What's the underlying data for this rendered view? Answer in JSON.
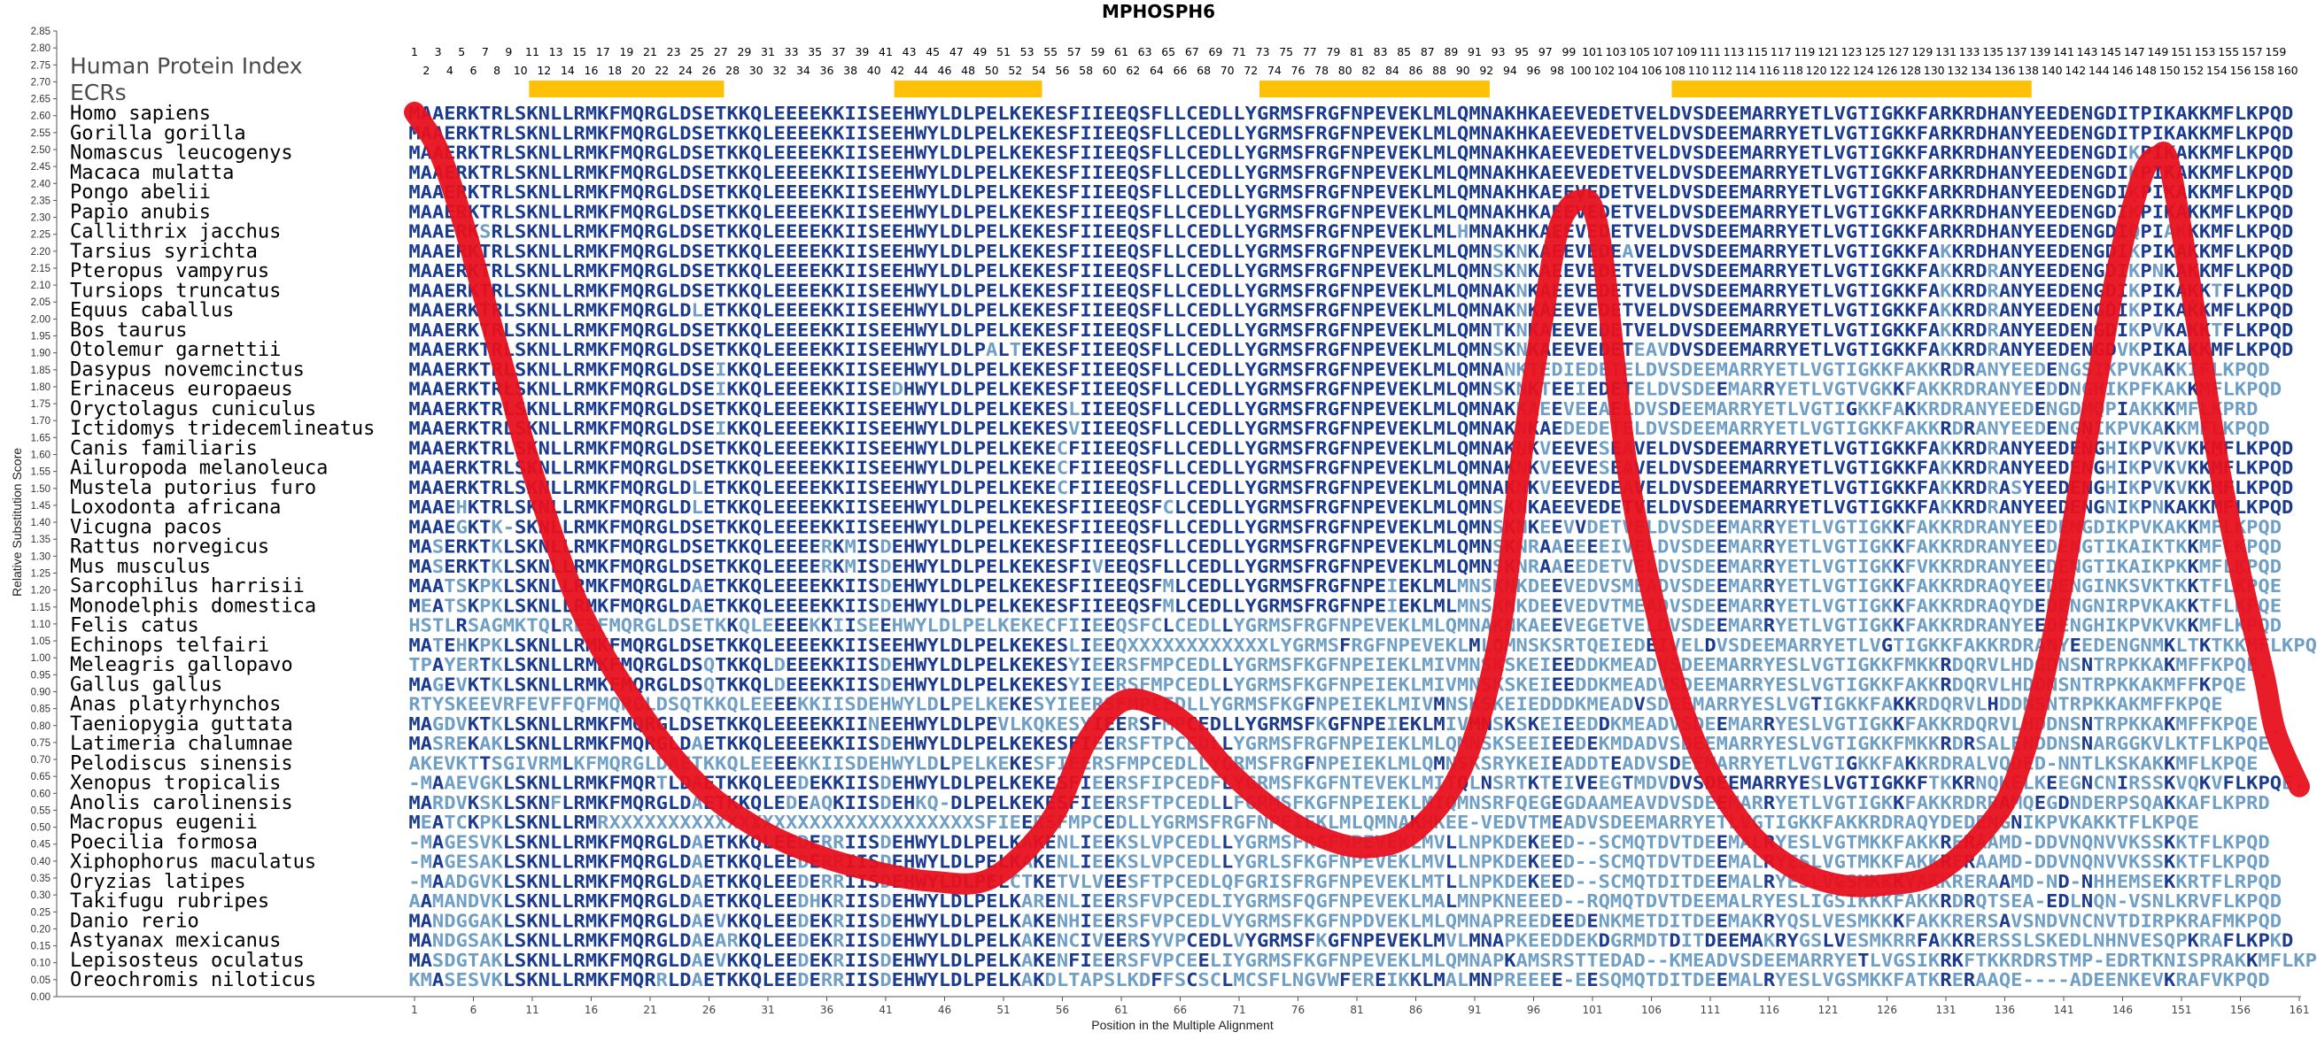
{
  "chart_data": {
    "type": "line",
    "title": "MPHOSPH6",
    "xlabel": "Position in the Multiple Alignment",
    "ylabel": "Relative Substitution Score",
    "ylim": [
      0,
      2.85
    ],
    "xlim": [
      1,
      161
    ],
    "y_ticks": [
      "0.00",
      "0.05",
      "0.10",
      "0.15",
      "0.20",
      "0.25",
      "0.30",
      "0.35",
      "0.40",
      "0.45",
      "0.50",
      "0.55",
      "0.60",
      "0.65",
      "0.70",
      "0.75",
      "0.80",
      "0.85",
      "0.90",
      "0.95",
      "1.00",
      "1.05",
      "1.10",
      "1.15",
      "1.20",
      "1.25",
      "1.30",
      "1.35",
      "1.40",
      "1.45",
      "1.50",
      "1.55",
      "1.60",
      "1.65",
      "1.70",
      "1.75",
      "1.80",
      "1.85",
      "1.90",
      "1.95",
      "2.00",
      "2.05",
      "2.10",
      "2.15",
      "2.20",
      "2.25",
      "2.30",
      "2.35",
      "2.40",
      "2.45",
      "2.50",
      "2.55",
      "2.60",
      "2.65",
      "2.70",
      "2.75",
      "2.80",
      "2.85"
    ],
    "x_ticks": [
      1,
      6,
      11,
      16,
      21,
      26,
      31,
      36,
      41,
      46,
      51,
      56,
      61,
      66,
      71,
      76,
      81,
      86,
      91,
      96,
      101,
      106,
      111,
      116,
      121,
      126,
      131,
      136,
      141,
      146,
      151,
      156,
      161
    ],
    "grid": false,
    "line_color": "#e8101d",
    "series": [
      {
        "x": [
          1,
          3,
          5,
          7,
          9,
          11,
          15,
          20,
          25,
          30,
          35,
          40,
          45,
          50,
          55,
          58,
          61,
          64,
          67,
          70,
          74,
          78,
          82,
          86,
          90,
          93,
          95,
          97,
          98,
          99,
          100,
          101,
          102,
          104,
          107,
          110,
          114,
          118,
          122,
          126,
          130,
          134,
          137,
          140,
          143,
          145,
          146,
          147,
          148,
          149,
          150,
          152,
          154,
          156,
          158,
          159,
          161
        ],
        "y": [
          2.61,
          2.5,
          2.3,
          2.05,
          1.8,
          1.55,
          1.15,
          0.85,
          0.63,
          0.5,
          0.42,
          0.37,
          0.34,
          0.35,
          0.52,
          0.75,
          0.87,
          0.86,
          0.79,
          0.67,
          0.55,
          0.47,
          0.44,
          0.49,
          0.68,
          1.05,
          1.6,
          2.05,
          2.25,
          2.33,
          2.35,
          2.33,
          2.15,
          1.55,
          1.05,
          0.73,
          0.5,
          0.38,
          0.33,
          0.33,
          0.36,
          0.48,
          0.65,
          1.05,
          1.65,
          2.05,
          2.22,
          2.35,
          2.45,
          2.48,
          2.45,
          2.05,
          1.6,
          1.25,
          0.95,
          0.78,
          0.62
        ]
      }
    ]
  },
  "header": {
    "human_protein_index": "Human Protein Index",
    "ecrs": "ECRs"
  },
  "column_numbers_top": [
    1,
    3,
    5,
    7,
    9,
    11,
    13,
    15,
    17,
    19,
    21,
    23,
    25,
    27,
    29,
    31,
    33,
    35,
    37,
    39,
    41,
    43,
    45,
    47,
    49,
    51,
    53,
    55,
    57,
    59,
    61,
    63,
    65,
    67,
    69,
    71,
    73,
    75,
    77,
    79,
    81,
    83,
    85,
    87,
    89,
    91,
    93,
    95,
    97,
    99,
    101,
    103,
    105,
    107,
    109,
    111,
    113,
    115,
    117,
    119,
    121,
    123,
    125,
    127,
    129,
    131,
    133,
    135,
    137,
    139,
    141,
    143,
    145,
    147,
    149,
    151,
    153,
    155,
    157,
    159
  ],
  "column_numbers_bottom": [
    2,
    4,
    6,
    8,
    10,
    12,
    14,
    16,
    18,
    20,
    22,
    24,
    26,
    28,
    30,
    32,
    34,
    36,
    38,
    40,
    42,
    44,
    46,
    48,
    50,
    52,
    54,
    56,
    58,
    60,
    62,
    64,
    66,
    68,
    70,
    72,
    74,
    76,
    78,
    80,
    82,
    84,
    86,
    88,
    90,
    92,
    94,
    96,
    98,
    100,
    102,
    104,
    106,
    108,
    110,
    112,
    114,
    116,
    118,
    120,
    122,
    124,
    126,
    128,
    130,
    132,
    134,
    136,
    138,
    140,
    142,
    144,
    146,
    148,
    150,
    152,
    154,
    156,
    158,
    160
  ],
  "ecr_regions": [
    [
      11,
      27
    ],
    [
      42,
      54
    ],
    [
      73,
      92
    ],
    [
      108,
      138
    ]
  ],
  "ecr_color": "#ffc107",
  "residue_colors": {
    "conserved": "#1b3b8f",
    "variable": "#6f9fc4"
  },
  "alignment": [
    {
      "species": "Homo sapiens",
      "seq": "MAAERKTRLSKNLLRMKFMQRGLDSETKKQLEEEEKKIISEEHWYLDLPELKEKESFIIEEQSFLLCEDLLYGRMSFRGFNPEVEKLMLQMNAKHKAEEVEDETVELDVSDEEMARRYETLVGTIGKKFARKRDHANYEEDENGDITPIKAKKMFLKPQD"
    },
    {
      "species": "Gorilla gorilla",
      "seq": "MAAERKTRLSKNLLRMKFMQRGLDSETKKQLEEEEKKIISEEHWYLDLPELKEKESFIIEEQSFLLCEDLLYGRMSFRGFNPEVEKLMLQMNAKHKAEEVEDETVELDVSDEEMARRYETLVGTIGKKFARKRDHANYEEDENGDITPIKAKKMFLKPQD"
    },
    {
      "species": "Nomascus leucogenys",
      "seq": "MAAERKTRLSKNLLRMKFMQRGLDSETKKQLEEEEKKIISEEHWYLDLPELKEKESFIIEEQSFLLCEDLLYGRMSFRGFNPEVEKLMLQMNAKHKAEEVEDETVELDVSDEEMARRYETLVGTIGKKFARKRDHANYEEDENGDIKPIKAKKMFLKPQD"
    },
    {
      "species": "Macaca mulatta",
      "seq": "MAAERKTRLSKNLLRMKFMQRGLDSETKKQLEEEEKKIISEEHWYLDLPELKEKESFIIEEQSFLLCEDLLYGRMSFRGFNPEVEKLMLQMNAKHKAEEVEDETVELDVSDEEMARRYETLVGTIGKKFARKRDHANYEEDENGDIKPIKAKKMFLKPQD"
    },
    {
      "species": "Pongo abelii",
      "seq": "MAAERKTRLSKNLLRMKFMQRGLDSETKKQLEEEEKKIISEEHWYLDLPELKEKESFIIEEQSFLLCEDLLYGRMSFRGFNPEVEKLMLQMNAKHKAEEVEDETVELDVSDEEMARRYETLVGTIGKKFARKRDHANYEEDENGDIKPIKAKKMFLKPQD"
    },
    {
      "species": "Papio anubis",
      "seq": "MAAERKTRLSKNLLRMKFMQRGLDSETKKQLEEEEKKIISEEHWYLDLPELKEKESFIIEEQSFLLCEDLLYGRMSFRGFNPEVEKLMLQMNAKHKAEEVEDETVELDVSDEEMARRYETLVGTIGKKFARKRDHANYEEDENGDIKPIKAKKMFLKPQD"
    },
    {
      "species": "Callithrix jacchus",
      "seq": "MAAERKSRLSKNLLRMKFMQRGLDSETKKQLEEEEKKIISEEHWYLDLPELKEKESFIIEEQSFLLCEDLLYGRMSFRGFNPEVEKLMLHMNAKHKAEEVEDETVELDVSDEEMARRYETLVGTIGKKFARKRDHANYEEDENGDIQPIAKKKMFLKPQD"
    },
    {
      "species": "Tarsius syrichta",
      "seq": "MAAERKTRLSKNLLRMKFMQRGLDSETKKQLEEEEKKIISEEHWYLDLPELKEKESFIIEEQSFLLCEDLLYGRMSFRGFNPEVEKLMLQMNSKNKAEEVEDEAVELDVSDEEMARRYETLVGTIGKKFAKKRDHANYEEDENGDIKPIKAKKMFLKPQD"
    },
    {
      "species": "Pteropus vampyrus",
      "seq": "MAAERKTRLSKNLLRMKFMQRGLDSETKKQLEEEEKKIISEEHWYLDLPELKEKESFIIEEQSFLLCEDLLYGRMSFRGFNPEVEKLMLQMNSKNKAEEVEDETVELDVSDEEMARRYETLVGTIGKKFAKKRDRANYEEDENGDIKPNKAKKMFLKPQD"
    },
    {
      "species": "Tursiops truncatus",
      "seq": "MAAERKTRLSKNLLRMKFMQRGLDSETKKQLEEEEKKIISEEHWYLDLPELKEKESFIIEEQSFLLCEDLLYGRMSFRGFNPEVEKLMLQMNAKNKAEEVEDETVELDVSDEEMARRYETLVGTIGKKFAKKRDRANYEEDENGDIKPIKAKKTFLKPQD"
    },
    {
      "species": "Equus caballus",
      "seq": "MAAERKTRLSKNLLRMKFMQRGLDLETKKQLEEEEKKIISEEHWYLDLPELKEKESFIIEEQSFLLCEDLLYGRMSFRGFNPEVEKLMLQMNAKNKAEEVEDETVELDVSDEEMARRYETLVGTIGKKFAKKRDRANYEEDENGDIKPIKAKKMFLKPQD"
    },
    {
      "species": "Bos taurus",
      "seq": "MAAERKTRLSKNLLRMKFMQRGLDSETKKQLEEEEKKIISEEHWYLDLPELKEKESFIIEEQSFLLCEDLLYGRMSFRGFNPEVEKLMLQMNTKNKAEEVEDETVELDVSDEEMARRYETLVGTIGKKFAKKRDRANYEEDENGDIKPVKAKKTFLKPQD"
    },
    {
      "species": "Otolemur garnettii",
      "seq": "MAAERKTRLSKNLLRMKFMQRGLDSETKKQLEEEEKKIISEEHWYLDLPALTEKESFIIEEQSFLLCEDLLYGRMSFRGFNPEVEKLMLQMNSKNKAEEVEDETEAVDVSDEEMARRYETLVGTIGKKFAKKRDRANYEEDENGDVKPIKAKKMFLKPQD"
    },
    {
      "species": "Dasypus novemcinctus",
      "seq": "MAAERKTRLSKNLLRMKFMQRGLDSEIKKQLEEEEKKIISEEHWYLDLPELKEKESFIIEEQSFLLCEDLLYGRMSFRGFNPEVEKLMLQMNANKTEDIEDETELDVSDEEMARRYETLVGTIGKKFAKKRDRANYEEDENGSIKPVKAKKIFLKPQD"
    },
    {
      "species": "Erinaceus europaeus",
      "seq": "MAAERKTRLSKNLLRMKFMQRGLDSEIKKQLEEEEKKIISEDHWYLDLPELKEKESFIIEEQSFLLCEDLLYGRMSFRGFNPEVEKLMLQMNSKNKTEEIEDETELDVSDEEMARRYETLVGTVGKKFAKKRDRANYEEDDNGHIKPFKAKKMFLKPQD"
    },
    {
      "species": "Oryctolagus cuniculus",
      "seq": "MAAERKTRLSKNLLRMKFMQRGLDSETKKQLEEEEKKIISEEHWYLDLPELKEKESLIIEEQSFLLCEDLLYGRMSFRGFNPEVEKLMLQMNAKKAEEVEEAELDVSDEEMARRYETLVGTIGKKFAKKRDRANYEEDENGDMQPIAKKKMFLKPRD"
    },
    {
      "species": "Ictidomys tridecemlineatus",
      "seq": "MAAERKTRLSKNLLRMKFMQRGLDSEIKKQLEEEEKKIISEEHWYLDLPELKEKESVIIEEQSFLLCEDLLYGRMSFRGFNPEVEKLMLQMNAKNKAEDEDETELDVSDEEMARRYETLVGTIGKKFAKKRDRANYEEDENGNIKPVKAKKMFLKPQD"
    },
    {
      "species": "Canis familiaris",
      "seq": "MAAERKTRLSKNLLRMKFMQRGLDSETKKQLEEEEKKIISEEHWYLDLPELKEKECFIIEEQSFLLCEDLLYGRMSFRGFNPEVEKLMLQMNAKNKVEEVESEAVELDVSDEEMARRYETLVGTIGKKFAKKRDRANYEEDENGHIKPVKVKKMFLKPQD"
    },
    {
      "species": "Ailuropoda melanoleuca",
      "seq": "MAAERKTRLSKNLLRMKFMQRGLDSETKKQLEEEEKKIISEEHWYLDLPELKEKECFIIEEQSFLLCEDLLYGRMSFRGFNPEVEKLMLQMNAKNKVEEVESEAVELDVSDEEMARRYETLVGTIGKKFAKKRDRANYEEDENGHIKPVKVKKMFLKPQD"
    },
    {
      "species": "Mustela putorius furo",
      "seq": "MAAERKTRLSKNLLRMKFMQRGLDLETKKQLEEEEKKIISEEHWYLDLPELKEKECFIIEEQSFLLCEDLLYGRMSFRGFNPEVEKLMLQMNAKNKVEEVEDEAVELDVSDEEMARRYETLVGTIGKKFAKKRDRASYEEDENGHIKPVKVKKMFLKPQD"
    },
    {
      "species": "Loxodonta africana",
      "seq": "MAAEHKTRLSKNLLRMKFMQRGLDLETKKQLEEEEKKIISEEHWYLDLPELKEKESFIIEEQSFCLCEDLLYGRMSFRGFNPEVEKLMLQMNSKNKAEEVEDETVELDVSDEEMARRYETLVGTIGKKFAKKRDRANYEEDENGNIKPNKAKKMFLKPQD"
    },
    {
      "species": "Vicugna pacos",
      "seq": "MAAEGKTK-SKNLLRMKFMQRGLDSETKKQLEEEEKKIISEEHWYLDLPELKEKESFIIEEQSFLLCEDLLYGRMSFRGFNPEVEKLMLQMNSKNKEEVVDETVELDVSDEEMARRYETLVGTIGKKFAKKRDRANYEEDENGDIKPVKAKKMFLKPQD"
    },
    {
      "species": "Rattus norvegicus",
      "seq": "MASERKTKLSKNLLRMKFMQRGLDSETKKQLEEEERKMISDEHWYLDLPELKEKESFIIEEQSFLLCEDLLYGRMSFRGFNPEVEKLMLQMNSKNRAAEEEEIVELDVSDEEMARRYETLVGTIGKKFAKKRDRANYEEDENGTIKAIKTKKMFLKPQD"
    },
    {
      "species": "Mus musculus",
      "seq": "MASERKTKLSKNLLRMKFMQRGLDSETKKQLEEEERKMISDEHWYLDLPELKEKESFIVEEQSFLLCEDLLYGRMSFRGFNPEVEKLMLQMNSKNRAAEEDETVELDVSDEEMARRYETLVGTIGKKFVKKRDRANYEEDENGTIKAIKPKKMFLKPQD"
    },
    {
      "species": "Sarcophilus harrisii",
      "seq": "MAATSKPKLSKNLLRMKFMQRGLDAETKKQLEEEEKKIISDEHWYLDLPELKEKESFIIEEQSFMLCEDLLYGRMSFRGFNPEIEKLMLMNSKNKDEEVEDVSMEADVSDEEMARRYETLVGTIGKKFAKKRDRAQYEEDENGINKSVKTKKTFLKPQE"
    },
    {
      "species": "Monodelphis domestica",
      "seq": "MEATSKPKLSKNLLRMKFMQRGLDAETKKQLEEEEKKIISDEHWYLDLPELKEKESFIIEEQSFMLCEDLLYGRMSFRGFNPEIEKLMLMNSKNKDEEVEDVTMEADVSDEEMARRYETLVGTIGKKFAKKRDRAQYDEDENGNIRPVKAKKTFLKPQE"
    },
    {
      "species": "Felis catus",
      "seq": "HSTLRSAGMKTQLRESFMQRGLDSETKKQLEEEEKKIISEEHWYLDLPELKEKECFIIEEQSFCLCEDLLYGRMSFRGFNPEVEKLMLQMNAKNKAEEVEGETVELDVSDEEMARRYETLVGTIGKKFAKKRDRANYEEDENGHIKPVKVKKMFLKPQD"
    },
    {
      "species": "Echinops telfairi",
      "seq": "MATEHKPKLSKNLLRMKFMQRGLDSETKKQLEEEEKKIISEEHWYLDLPELKEKESLIEEQXXXXXXXXXXXXLYGRMSFRGFNPEVEKLMLQMNSKSRTQEIEDEIVELDVSDEEMARRYETLVGTIGKKFAKKRDRANYEEDENGNMKLTKTKKMFLKPQD"
    },
    {
      "species": "Meleagris gallopavo",
      "seq": "TPAYERTKLSKNLLRMKFMQRGLDSQTKKQLDEEEKKIISDEHWYLDLPELKEKESYIEERSFMPCEDLLYGRMSFKGFNPEIEKLMIVMNSKSKEIEEDDKMEADVSDEEMARRYESLVGTIGKKFMKKRDQRVLHDGDNSNTRPKKAKMFFKPQE"
    },
    {
      "species": "Gallus gallus",
      "seq": "MAGEVKTKLSKNLLRMKFMQRGLDSQTKKQLDEEEKKIISDEHWYLDLPELKEKESYIEERSFMPCEDLLYGRMSFKGFNPEIEKLMIVMNSKSKEIEEDDKMEADVSDEEMARRYESLVGTIGKKFAKKRDQRVLHDDNSNTRPKKAKMFFKPQE"
    },
    {
      "species": "Anas platyrhynchos",
      "seq": "RTYSKEEVRFEVFFQFMQRGLDSQTKKQLEEEEKKIISDEHWYLDLPELKEKESYIEERSFMPCEDLLYGRMSFKGFNPEIEKLMIVMNSKSKEIEDDDKMEADVSDEEMARRYESLVGTIGKKFAKKRDQRVLHDDNSNTRPKKAKMFFKPQE"
    },
    {
      "species": "Taeniopygia guttata",
      "seq": "MAGDVKTKLSKNLLRMKFMQRGLDSETKKQLEEEEKKIINEEHWYLDLPEVLKQKESYIEERSFMPCEDLLYGRMSFKGFNPEIEKLMIVMNSKSKEIEEDDKMEADVSDEEMARRYESLVGTIGKKFAKKRDQRVLHDDNSNTRPKKAKMFFKPQE"
    },
    {
      "species": "Latimeria chalumnae",
      "seq": "MASREKAKLSKNLLRMKFMQRGLDAETKKQLEEEEKKIISDEHWYLDLPELKEKESFIEERSFTPCEDLLYGRMSFRGFNPEIEKLMLQMNSKSEEIEEDEKMDADVSDEEMARRYESLVGTIGKKFMKKRDRSALENDDNSNARGGKVLKTFLKPQE"
    },
    {
      "species": "Pelodiscus sinensis",
      "seq": "AKEVKTTSGIVRMLKFMQRGLDAETKKQLEEEEKKIISDEHWYLDLPELKEKESFIEERSFMPCEDLLYGRMSFRGFNPEIEKLMLQMNSKSRYKEIEADDTEADVSDEEMARRYETLVGTIGKKFAKKRDRALVQDED-NNTLKSKAKKMFLKPQE"
    },
    {
      "species": "Xenopus tropicalis",
      "seq": "-MAAEVGKLSKNLLRMKFMQRTLDAETKKQLEEDEKKIISDEHWYLDLPELKEKESFIEERSFIPCEDFLYGRMSFKGFNTEVEKLMITQLNSRTKTEIVEEGTMDVDVSDEEMARRYESLVGTIGKKFTKKRNQKELKEEGNCNIRSSKVQKVFLKPQE"
    },
    {
      "species": "Anolis carolinensis",
      "seq": "MARDVKSKLSKNFLRMKFMQRGLDAETKKQLEDEAQKIISDEHKQ-DLPELKEKESFIEERSFTPCEDLLFGRMSFKGFNPEIEKLMIQMNSRFQEGEGDAAMEAVDVSDEEMARRYETLVGTIGKKFAKKRDRRAMQEGDNDERPSQAKKAFLKPRD"
    },
    {
      "species": "Macropus eugenii",
      "seq": "MEATCKPKLSKNLLRMRXXXXXXXXXXXXXXXXXXXXXXXXXXXXXXXSFIEERSFMPCEDLLYGRMSFRGFNPEIEKLMLQMNAKHKEE-VEDVTMEADVSDEEMARRYETLVGTIGKKFAKKRDRAQYDEDENGNIKPVKAKKTFLKPQE"
    },
    {
      "species": "Poecilia formosa",
      "seq": "-MAGESVKLSKNLLRMKFMQRGLDAETKKQLEEDERRIISDEHWYLDLPELKAKENLIEEKSLVPCEDLLYGRMSFRGFNPEVEKLMVLLNPKDEKEED--SCMQTDVTDEEMALRYESLVGTMKKFAKKRERAAMD-DDVNQNVVKSSKKTFLKPQD"
    },
    {
      "species": "Xiphophorus maculatus",
      "seq": "-MAGESAKLSKNLLRMKFMQRGLDAETKKQLEEDERRIISDEHWYLDLPELKAKENLIEEKSLVPCEDLLYGRLSFKGFNPEVEKLMVLLNPKDEKEED--SCMQTDVTDEEMALRYESLVGTMKKFAKKRERAAMD-DDVNQNVVKSSKKTFLKPQD"
    },
    {
      "species": "Oryzias latipes",
      "seq": "-MAADGVKLSKNLLRMKFMQRGLDAETKKQLEEDERRIISDEHWYLDLPELCTKETVLVEESFTPCEDLQFGRISFRGFNPEVEKLMTLLNPKDEKEED--SCMQTDITDEEMALRYESLVGSMKKKYAKKRERAAMD-ND-NHHEMSEKKRTFLRPQD"
    },
    {
      "species": "Takifugu rubripes",
      "seq": "AAMANDVKLSKNLLRMKFMQRGLDAETKKQLEEDHKRIISDEHWYLDLPELKARENLIEERSFVPCEDLIYGRMSFQGFNPEVEKLMALMNPKNEEED--RQMQTDVTDEEMALRYESLIGSIKKKFAKKRDRQTSEA-EDLNQN-VSNLKRVFLKPQD"
    },
    {
      "species": "Danio rerio",
      "seq": "MANDGGAKLSKNLLRMKFMQRGLDAEVKKQLEEDEKRIISDEHWYLDLPELKAKENHIEERSFVPCEDLVYGRMSFKGFNPDVEKLMLQMNAPREEDEEDENKMETDITDEEMAKRYQSLVESMKKKFAKKRERSAVSNDVNCNVTDIRPKRAFMKPQD"
    },
    {
      "species": "Astyanax mexicanus",
      "seq": "MANDGSAKLSKNLLRMKFMQRGLDAEARKQLEEDEKRIISDEHWYLDLPELKAKENCIVEERSYVPCEDLVYGRMSFKGFNPEVEKLMVLMNAPKEEDDEKDGRMDTDITDEEMAKRYGSLVESMKRRFAKKRERSSLSKEDLNHNVESQPKRAFLKPKD"
    },
    {
      "species": "Lepisosteus oculatus",
      "seq": "MASDGTAKLSKNLLRMKFMQRGLDAEVKKQLEEDEKRIISDEHWYLDLPELKAKENFIEERSFVPCEELIYGRMSFKGFNPEVEKLMLQMNAPKAMSRSTTEDAD--KMEADVSDEEMARRYETLVGSIKRKFTKKRDRSTMP-EDRTKNISPRAKKMFLKPQD"
    },
    {
      "species": "Oreochromis niloticus",
      "seq": "KMASESVKLSKNLLRMKFMQRRLDAETKKQLEEDERRIISDEHWYLDLPELKAKDLTAPSLKDFFSCSCLMCSFLNGVWFEREIKKLMALMNPREEEE-EESQMQTDITDEEMALRYESLVGSMKKFATKRERAAQE----ADEENKEVKRAFVKPQD"
    }
  ]
}
